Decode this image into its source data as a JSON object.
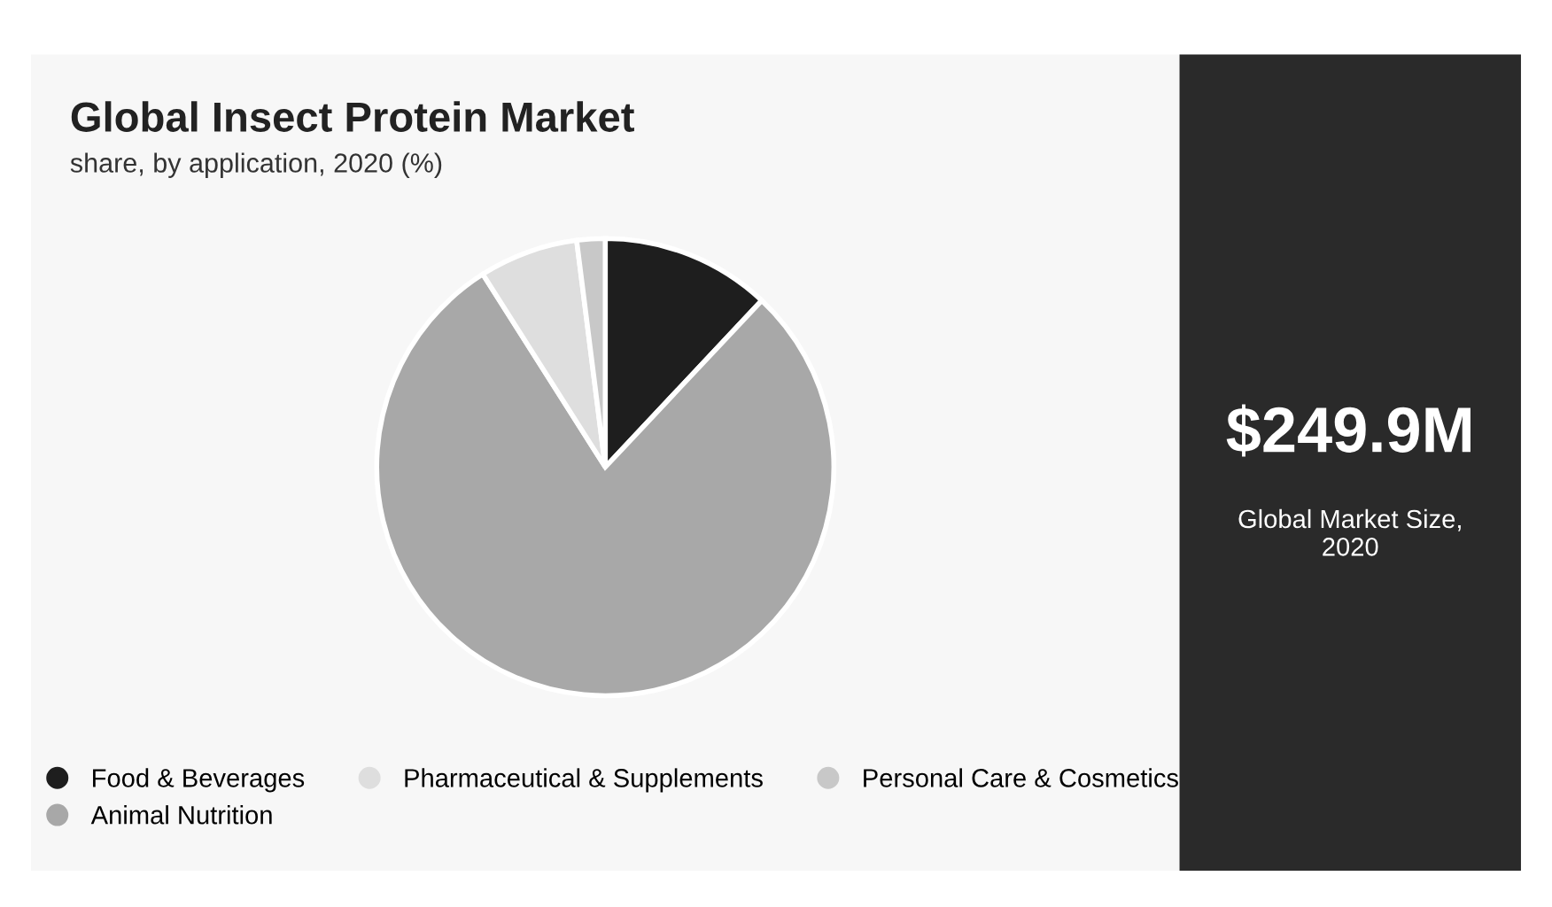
{
  "chart_data": {
    "type": "pie",
    "title": "Global Insect Protein Market",
    "subtitle": "share, by application, 2020 (%)",
    "categories": [
      "Food & Beverages",
      "Animal Nutrition",
      "Pharmaceutical & Supplements",
      "Personal Care & Cosmetics"
    ],
    "values": [
      12,
      79,
      7,
      2
    ],
    "colors": [
      "#1e1e1e",
      "#a8a8a8",
      "#dedede",
      "#c8c8c8"
    ],
    "legend": "bottom",
    "annotations": [
      "$249.9M",
      "Global Market Size,\n2020"
    ]
  }
}
